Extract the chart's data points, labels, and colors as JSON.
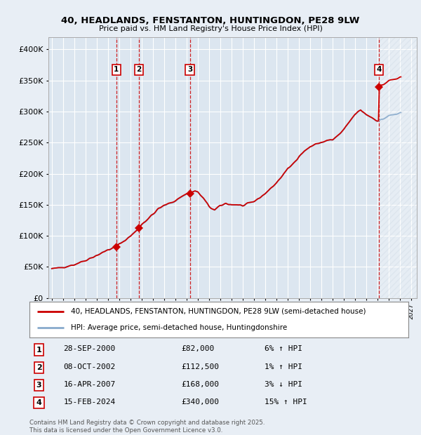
{
  "title_line1": "40, HEADLANDS, FENSTANTON, HUNTINGDON, PE28 9LW",
  "title_line2": "Price paid vs. HM Land Registry's House Price Index (HPI)",
  "ylim": [
    0,
    420000
  ],
  "xlim_start": 1994.7,
  "xlim_end": 2027.5,
  "yticks": [
    0,
    50000,
    100000,
    150000,
    200000,
    250000,
    300000,
    350000,
    400000
  ],
  "ytick_labels": [
    "£0",
    "£50K",
    "£100K",
    "£150K",
    "£200K",
    "£250K",
    "£300K",
    "£350K",
    "£400K"
  ],
  "xticks": [
    1995,
    1996,
    1997,
    1998,
    1999,
    2000,
    2001,
    2002,
    2003,
    2004,
    2005,
    2006,
    2007,
    2008,
    2009,
    2010,
    2011,
    2012,
    2013,
    2014,
    2015,
    2016,
    2017,
    2018,
    2019,
    2020,
    2021,
    2022,
    2023,
    2024,
    2025,
    2026,
    2027
  ],
  "sale_dates": [
    2000.747,
    2002.775,
    2007.29,
    2024.12
  ],
  "sale_prices": [
    82000,
    112500,
    168000,
    340000
  ],
  "sale_labels": [
    "1",
    "2",
    "3",
    "4"
  ],
  "sale_color": "#cc0000",
  "hpi_color": "#88aacc",
  "background_color": "#e8eef5",
  "plot_bg_color": "#dce6f0",
  "grid_color": "#ffffff",
  "future_hatch_color": "#c8d4e0",
  "legend_label_red": "40, HEADLANDS, FENSTANTON, HUNTINGDON, PE28 9LW (semi-detached house)",
  "legend_label_blue": "HPI: Average price, semi-detached house, Huntingdonshire",
  "table_data": [
    [
      "1",
      "28-SEP-2000",
      "£82,000",
      "6% ↑ HPI"
    ],
    [
      "2",
      "08-OCT-2002",
      "£112,500",
      "1% ↑ HPI"
    ],
    [
      "3",
      "16-APR-2007",
      "£168,000",
      "3% ↓ HPI"
    ],
    [
      "4",
      "15-FEB-2024",
      "£340,000",
      "15% ↑ HPI"
    ]
  ],
  "footer_text": "Contains HM Land Registry data © Crown copyright and database right 2025.\nThis data is licensed under the Open Government Licence v3.0."
}
